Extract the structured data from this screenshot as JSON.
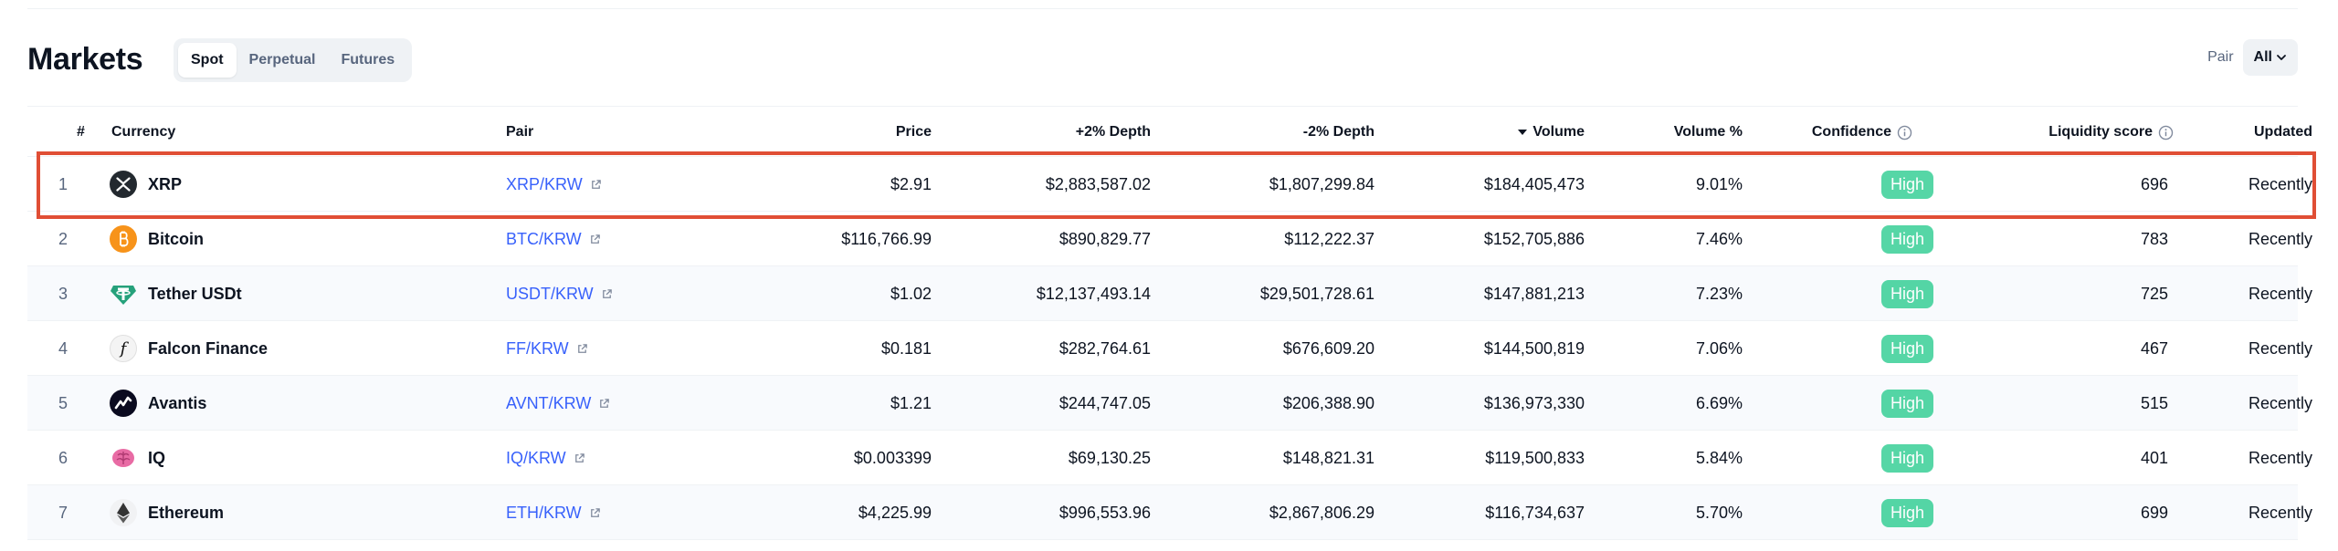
{
  "header": {
    "title": "Markets",
    "tabs": [
      {
        "label": "Spot",
        "active": true
      },
      {
        "label": "Perpetual",
        "active": false
      },
      {
        "label": "Futures",
        "active": false
      }
    ],
    "pair_label": "Pair",
    "pair_value": "All"
  },
  "table": {
    "columns": {
      "rank": "#",
      "currency": "Currency",
      "pair": "Pair",
      "price": "Price",
      "depth_plus": "+2% Depth",
      "depth_minus": "-2% Depth",
      "volume": "Volume",
      "volume_pct": "Volume %",
      "confidence": "Confidence",
      "liquidity": "Liquidity score",
      "updated": "Updated"
    },
    "rows": [
      {
        "rank": "1",
        "name": "XRP",
        "icon": "xrp-icon",
        "pair": "XRP/KRW",
        "price": "$2.91",
        "depth_plus": "$2,883,587.02",
        "depth_minus": "$1,807,299.84",
        "volume": "$184,405,473",
        "volume_pct": "9.01%",
        "confidence": "High",
        "liquidity": "696",
        "updated": "Recently"
      },
      {
        "rank": "2",
        "name": "Bitcoin",
        "icon": "bitcoin-icon",
        "pair": "BTC/KRW",
        "price": "$116,766.99",
        "depth_plus": "$890,829.77",
        "depth_minus": "$112,222.37",
        "volume": "$152,705,886",
        "volume_pct": "7.46%",
        "confidence": "High",
        "liquidity": "783",
        "updated": "Recently"
      },
      {
        "rank": "3",
        "name": "Tether USDt",
        "icon": "tether-icon",
        "pair": "USDT/KRW",
        "price": "$1.02",
        "depth_plus": "$12,137,493.14",
        "depth_minus": "$29,501,728.61",
        "volume": "$147,881,213",
        "volume_pct": "7.23%",
        "confidence": "High",
        "liquidity": "725",
        "updated": "Recently"
      },
      {
        "rank": "4",
        "name": "Falcon Finance",
        "icon": "falcon-finance-icon",
        "pair": "FF/KRW",
        "price": "$0.181",
        "depth_plus": "$282,764.61",
        "depth_minus": "$676,609.20",
        "volume": "$144,500,819",
        "volume_pct": "7.06%",
        "confidence": "High",
        "liquidity": "467",
        "updated": "Recently"
      },
      {
        "rank": "5",
        "name": "Avantis",
        "icon": "avantis-icon",
        "pair": "AVNT/KRW",
        "price": "$1.21",
        "depth_plus": "$244,747.05",
        "depth_minus": "$206,388.90",
        "volume": "$136,973,330",
        "volume_pct": "6.69%",
        "confidence": "High",
        "liquidity": "515",
        "updated": "Recently"
      },
      {
        "rank": "6",
        "name": "IQ",
        "icon": "iq-brain-icon",
        "pair": "IQ/KRW",
        "price": "$0.003399",
        "depth_plus": "$69,130.25",
        "depth_minus": "$148,821.31",
        "volume": "$119,500,833",
        "volume_pct": "5.84%",
        "confidence": "High",
        "liquidity": "401",
        "updated": "Recently"
      },
      {
        "rank": "7",
        "name": "Ethereum",
        "icon": "ethereum-icon",
        "pair": "ETH/KRW",
        "price": "$4,225.99",
        "depth_plus": "$996,553.96",
        "depth_minus": "$2,867,806.29",
        "volume": "$116,734,637",
        "volume_pct": "5.70%",
        "confidence": "High",
        "liquidity": "699",
        "updated": "Recently"
      }
    ]
  },
  "colors": {
    "link": "#3861fb",
    "confidence_high": "#16c784",
    "highlight_border": "#e04e35"
  }
}
